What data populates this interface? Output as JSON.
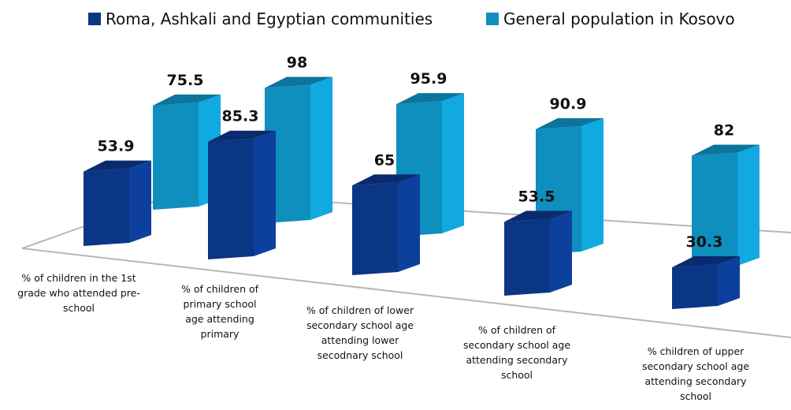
{
  "chart_data": {
    "type": "bar",
    "categories": [
      "% of children in the 1st grade who attended pre-school",
      "% of children of primary school age attending primary",
      "% of children of lower secondary school age attending lower secodnary school",
      "% of children of secondary school age attending secondary school",
      "% children of upper secondary school age attending secondary school"
    ],
    "category_lines": [
      [
        "% of children in the 1st",
        "grade who attended pre-",
        "school"
      ],
      [
        "% of children of",
        "primary school",
        "age attending",
        "primary"
      ],
      [
        "% of children of lower",
        "secondary school age",
        "attending lower",
        "secodnary school"
      ],
      [
        "% of children of",
        "secondary school age",
        "attending secondary",
        "school"
      ],
      [
        "% children of upper",
        "secondary school age",
        "attending secondary",
        "school"
      ]
    ],
    "series": [
      {
        "name": "Roma, Ashkali and Egyptian communities",
        "values": [
          53.9,
          85.3,
          65,
          53.5,
          30.3
        ],
        "labels": [
          "53.9",
          "85.3",
          "65",
          "53.5",
          "30.3"
        ]
      },
      {
        "name": "General population in Kosovo",
        "values": [
          75.5,
          98,
          95.9,
          90.9,
          82
        ],
        "labels": [
          "75.5",
          "98",
          "95.9",
          "90.9",
          "82"
        ]
      }
    ],
    "colors": [
      "#0b3585",
      "#0e8fbd"
    ],
    "legend_position": "top",
    "style": "3d-perspective",
    "ylim": [
      0,
      100
    ]
  }
}
